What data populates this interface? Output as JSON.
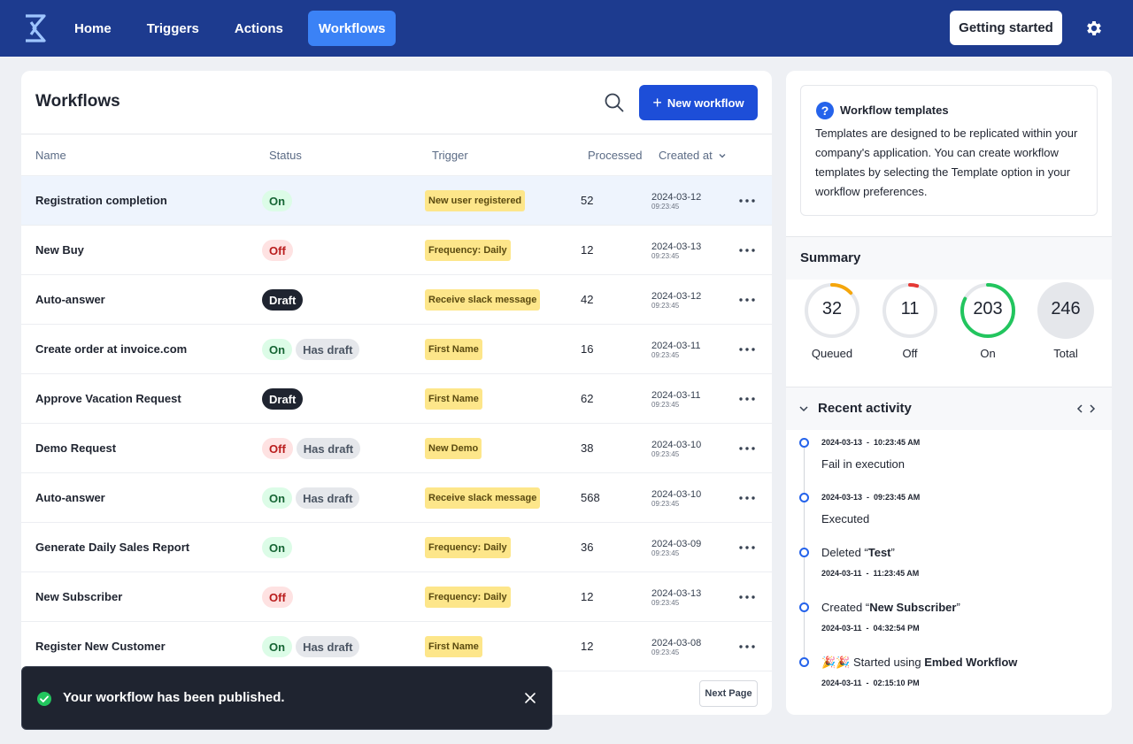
{
  "nav": {
    "logo": "embed-workflow-logo",
    "items": [
      {
        "label": "Home",
        "active": false
      },
      {
        "label": "Triggers",
        "active": false
      },
      {
        "label": "Actions",
        "active": false
      },
      {
        "label": "Workflows",
        "active": true
      }
    ],
    "getting_started": "Getting started",
    "settings_icon": "gear-icon"
  },
  "workflows": {
    "title": "Workflows",
    "new_button": "New workflow",
    "columns": {
      "name": "Name",
      "status": "Status",
      "trigger": "Trigger",
      "processed": "Processed",
      "created_at": "Created at"
    },
    "rows": [
      {
        "name": "Registration completion",
        "status": [
          "On"
        ],
        "trigger": "New user registered",
        "processed": "52",
        "date": "2024-03-12",
        "time": "09:23:45",
        "highlight": true
      },
      {
        "name": "New Buy",
        "status": [
          "Off"
        ],
        "trigger": "Frequency: Daily",
        "processed": "12",
        "date": "2024-03-13",
        "time": "09:23:45"
      },
      {
        "name": "Auto-answer",
        "status": [
          "Draft"
        ],
        "trigger": "Receive slack message",
        "processed": "42",
        "date": "2024-03-12",
        "time": "09:23:45"
      },
      {
        "name": "Create order at invoice.com",
        "status": [
          "On",
          "Has draft"
        ],
        "trigger": "First Name",
        "processed": "16",
        "date": "2024-03-11",
        "time": "09:23:45"
      },
      {
        "name": "Approve Vacation Request",
        "status": [
          "Draft"
        ],
        "trigger": "First Name",
        "processed": "62",
        "date": "2024-03-11",
        "time": "09:23:45"
      },
      {
        "name": "Demo Request",
        "status": [
          "Off",
          "Has draft"
        ],
        "trigger": "New Demo",
        "processed": "38",
        "date": "2024-03-10",
        "time": "09:23:45"
      },
      {
        "name": "Auto-answer",
        "status": [
          "On",
          "Has draft"
        ],
        "trigger": "Receive slack message",
        "processed": "568",
        "date": "2024-03-10",
        "time": "09:23:45"
      },
      {
        "name": "Generate Daily Sales Report",
        "status": [
          "On"
        ],
        "trigger": "Frequency: Daily",
        "processed": "36",
        "date": "2024-03-09",
        "time": "09:23:45"
      },
      {
        "name": "New Subscriber",
        "status": [
          "Off"
        ],
        "trigger": "Frequency: Daily",
        "processed": "12",
        "date": "2024-03-13",
        "time": "09:23:45"
      },
      {
        "name": "Register New Customer",
        "status": [
          "On",
          "Has draft"
        ],
        "trigger": "First Name",
        "processed": "12",
        "date": "2024-03-08",
        "time": "09:23:45"
      }
    ],
    "next_page": "Next Page"
  },
  "toast": {
    "message": "Your workflow has been published."
  },
  "templates": {
    "title": "Workflow templates",
    "body": "Templates are designed to be replicated within your company's application. You can create workflow templates by selecting the Template option in your workflow preferences."
  },
  "summary": {
    "title": "Summary",
    "items": [
      {
        "value": "32",
        "label": "Queued",
        "color": "#f5a60b",
        "fraction": 0.13
      },
      {
        "value": "11",
        "label": "Off",
        "color": "#e53935",
        "fraction": 0.045
      },
      {
        "value": "203",
        "label": "On",
        "color": "#22c55e",
        "fraction": 0.825
      },
      {
        "value": "246",
        "label": "Total",
        "color": "#e5e7eb",
        "fraction": 1
      }
    ]
  },
  "activity": {
    "title": "Recent activity",
    "items": [
      {
        "meta": "2024-03-13  -  10:23:45 AM",
        "prefix": "Fail in execution",
        "bold": "",
        "suffix": ""
      },
      {
        "meta": "2024-03-13  -  09:23:45 AM",
        "prefix": "Executed",
        "bold": "",
        "suffix": ""
      },
      {
        "meta": "2024-03-11  -  11:23:45 AM",
        "prefix": "Deleted “",
        "bold": "Test",
        "suffix": "”"
      },
      {
        "meta": "2024-03-11  -  04:32:54 PM",
        "prefix": "Created “",
        "bold": "New Subscriber",
        "suffix": "”"
      },
      {
        "meta": "2024-03-11  -  02:15:10 PM",
        "prefix": "🎉🎉 Started using ",
        "bold": "Embed Workflow",
        "suffix": ""
      }
    ]
  }
}
